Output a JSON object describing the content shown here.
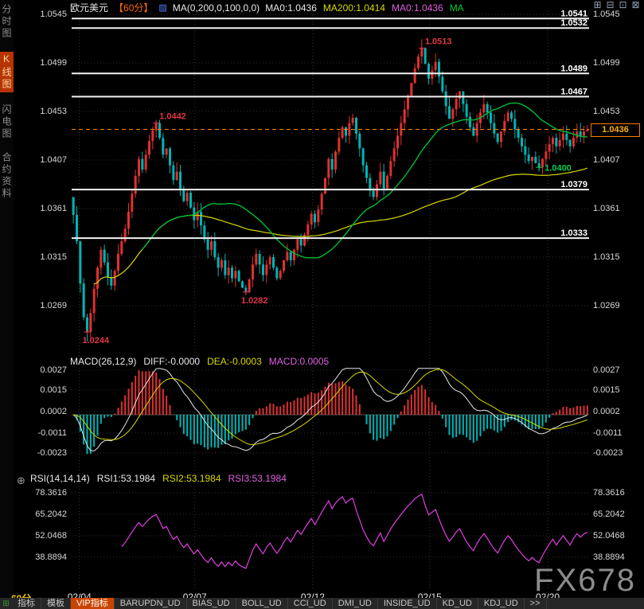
{
  "header": {
    "symbol": "欧元美元",
    "interval_tag": "【60分】",
    "ma_settings": "MA(0,200,0,100,0,0)",
    "ma_readouts": [
      {
        "text": "MA0:1.0436",
        "color": "#e8e8e8"
      },
      {
        "text": "MA200:1.0414",
        "color": "#d8d800"
      },
      {
        "text": "MA0:1.0436",
        "color": "#e060e0"
      },
      {
        "text": "MA",
        "color": "#00cc33"
      }
    ]
  },
  "icons": {
    "ma_settings_icon": "▨",
    "crosshair": "⊕",
    "layout_grid": "⊞",
    "dropdown_arrow": "▼"
  },
  "window_controls": [
    {
      "glyph": "⊞",
      "name": "layout-grid-icon"
    },
    {
      "glyph": "⊟",
      "name": "layout-split-icon"
    },
    {
      "glyph": "⊡",
      "name": "layout-single-icon"
    },
    {
      "glyph": "⊠",
      "name": "close-icon"
    }
  ],
  "sidebar": {
    "items": [
      {
        "label": "分时图",
        "name": "time-chart",
        "active": false
      },
      {
        "label": "K线图",
        "name": "candle-chart",
        "active": true
      },
      {
        "label": "闪电图",
        "name": "tick-chart",
        "active": false
      },
      {
        "label": "合约资料",
        "name": "contract-info",
        "active": false
      }
    ]
  },
  "macd_panel": {
    "readouts": [
      {
        "text": "MACD(26,12,9)",
        "color": "#e8e8e8"
      },
      {
        "text": "DIFF:-0.0000",
        "color": "#e8e8e8"
      },
      {
        "text": "DEA:-0.0003",
        "color": "#d8d800"
      },
      {
        "text": "MACD:0.0005",
        "color": "#e060e0"
      }
    ],
    "axis": [
      "0.0027",
      "0.0015",
      "0.0002",
      "-0.0011",
      "-0.0023"
    ]
  },
  "rsi_panel": {
    "readouts": [
      {
        "text": "RSI(14,14,14)",
        "color": "#e8e8e8"
      },
      {
        "text": "RSI1:53.1984",
        "color": "#e8e8e8"
      },
      {
        "text": "RSI2:53.1984",
        "color": "#d8d800"
      },
      {
        "text": "RSI3:53.1984",
        "color": "#e060e0"
      }
    ],
    "axis": [
      "78.3616",
      "65.2042",
      "52.0468",
      "38.8894"
    ]
  },
  "toolbar": {
    "interval_label": "60分",
    "more_label": ">>",
    "items": [
      {
        "label": "指标",
        "name": "indicators",
        "active": false
      },
      {
        "label": "模板",
        "name": "templates",
        "active": false
      },
      {
        "label": "VIP指标",
        "name": "vip-indicators",
        "active": true
      },
      {
        "label": "BARUPDN_UD",
        "name": "barupdn-ud",
        "active": false
      },
      {
        "label": "BIAS_UD",
        "name": "bias-ud",
        "active": false
      },
      {
        "label": "BOLL_UD",
        "name": "boll-ud",
        "active": false
      },
      {
        "label": "CCI_UD",
        "name": "cci-ud",
        "active": false
      },
      {
        "label": "DMI_UD",
        "name": "dmi-ud",
        "active": false
      },
      {
        "label": "INSIDE_UD",
        "name": "inside-ud",
        "active": false
      },
      {
        "label": "KD_UD",
        "name": "kd-ud",
        "active": false
      },
      {
        "label": "KDJ_UD",
        "name": "kdj-ud",
        "active": false
      }
    ]
  },
  "watermark": "FX678",
  "colors": {
    "up": "#e03030",
    "down": "#00b4b4",
    "ma_fast": "#00bb33",
    "ma_slow": "#d8d800",
    "macd_diff": "#e8e8e8",
    "macd_dea": "#d8d800",
    "rsi": "#e040e0",
    "hline": "#f2f2f2",
    "price_line": "#ff8800",
    "annotation_red": "#e03545",
    "annotation_green": "#00cc55"
  },
  "chart_data": {
    "type": "candlestick",
    "title": "欧元美元 60分 K线图",
    "interval": "60分",
    "y_axis": [
      "1.0545",
      "1.0499",
      "1.0453",
      "1.0407",
      "1.0361",
      "1.0315",
      "1.0269"
    ],
    "hlines": [
      "1.0541",
      "1.0532",
      "1.0489",
      "1.0467",
      "1.0379",
      "1.0333"
    ],
    "current_price": 1.0436,
    "current_price_label": "1.0436",
    "x_labels": [
      {
        "text": "02/04",
        "pos": 0.015
      },
      {
        "text": "02/07",
        "pos": 0.238
      },
      {
        "text": "02/12",
        "pos": 0.466
      },
      {
        "text": "02/15",
        "pos": 0.692
      },
      {
        "text": "02/20",
        "pos": 0.92
      }
    ],
    "annotations": [
      {
        "text": "1.0244",
        "price": 1.0244,
        "index": 4,
        "color": "#e03545",
        "placement": "below"
      },
      {
        "text": "1.0442",
        "price": 1.0442,
        "index": 24,
        "color": "#e03545",
        "placement": "above"
      },
      {
        "text": "1.0282",
        "price": 1.0282,
        "index": 50,
        "color": "#e03545",
        "placement": "below"
      },
      {
        "text": "1.0513",
        "price": 1.0513,
        "index": 101,
        "color": "#e03545",
        "placement": "above"
      },
      {
        "text": "1.0400",
        "price": 1.04,
        "index": 135,
        "color": "#00cc55",
        "placement": "right"
      }
    ],
    "first_open": 1.0372,
    "closes": [
      1.0355,
      1.033,
      1.029,
      1.0258,
      1.0244,
      1.0262,
      1.0285,
      1.0305,
      1.0322,
      1.031,
      1.0296,
      1.0288,
      1.0302,
      1.0318,
      1.033,
      1.0342,
      1.0358,
      1.0375,
      1.0392,
      1.0408,
      1.0398,
      1.0412,
      1.0425,
      1.0435,
      1.0442,
      1.0428,
      1.0412,
      1.0418,
      1.0402,
      1.0388,
      1.0396,
      1.038,
      1.0368,
      1.0376,
      1.0362,
      1.035,
      1.0358,
      1.0345,
      1.0332,
      1.0322,
      1.033,
      1.0315,
      1.0305,
      1.0312,
      1.0298,
      1.0305,
      1.0295,
      1.0302,
      1.0292,
      1.0286,
      1.0282,
      1.0294,
      1.0308,
      1.0318,
      1.0308,
      1.0298,
      1.0308,
      1.0315,
      1.0305,
      1.0295,
      1.0302,
      1.0312,
      1.032,
      1.0312,
      1.0322,
      1.0332,
      1.0326,
      1.0336,
      1.0346,
      1.0356,
      1.0348,
      1.036,
      1.0375,
      1.039,
      1.0408,
      1.0398,
      1.0415,
      1.0428,
      1.0438,
      1.043,
      1.0442,
      1.0447,
      1.0432,
      1.0418,
      1.0402,
      1.039,
      1.0378,
      1.0372,
      1.0384,
      1.0396,
      1.038,
      1.0392,
      1.0406,
      1.0418,
      1.043,
      1.0442,
      1.0455,
      1.0468,
      1.048,
      1.0494,
      1.0505,
      1.0513,
      1.0498,
      1.0484,
      1.0492,
      1.05,
      1.0486,
      1.0472,
      1.0458,
      1.0446,
      1.0455,
      1.0465,
      1.0472,
      1.046,
      1.0448,
      1.0438,
      1.043,
      1.0442,
      1.0452,
      1.046,
      1.0452,
      1.0442,
      1.0432,
      1.0424,
      1.0434,
      1.0444,
      1.0452,
      1.0446,
      1.0436,
      1.0428,
      1.042,
      1.0412,
      1.0406,
      1.041,
      1.0404,
      1.04,
      1.0408,
      1.0415,
      1.0422,
      1.0428,
      1.042,
      1.0426,
      1.0432,
      1.0426,
      1.042,
      1.0428,
      1.0434,
      1.043,
      1.0434,
      1.0436
    ]
  }
}
